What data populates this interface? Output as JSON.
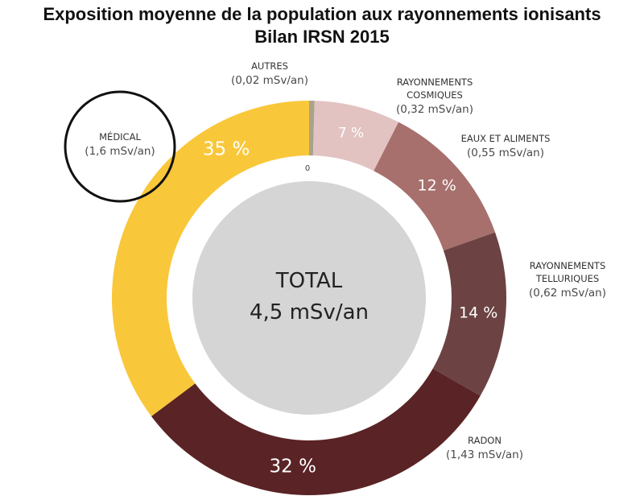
{
  "chart_data": {
    "type": "pie",
    "title": "Exposition moyenne de la population aux rayonnements ionisants",
    "subtitle": "Bilan IRSN 2015",
    "center_label": "TOTAL",
    "center_value": "4,5 mSv/an",
    "zero_tick": "0",
    "unit": "mSv/an",
    "slices": [
      {
        "name": "AUTRES",
        "value_label": "(0,02 mSv/an)",
        "value": 0.02,
        "pct_label": "",
        "color": "#a9a38a"
      },
      {
        "name": "RAYONNEMENTS COSMIQUES",
        "value_label": "(0,32 mSv/an)",
        "value": 0.32,
        "pct_label": "7 %",
        "color": "#e2c3c2"
      },
      {
        "name": "EAUX ET ALIMENTS",
        "value_label": "(0,55 mSv/an)",
        "value": 0.55,
        "pct_label": "12 %",
        "color": "#a7706d"
      },
      {
        "name": "RAYONNEMENTS TELLURIQUES",
        "value_label": "(0,62 mSv/an)",
        "value": 0.62,
        "pct_label": "14 %",
        "color": "#6c4342"
      },
      {
        "name": "RADON",
        "value_label": "(1,43 mSv/an)",
        "value": 1.43,
        "pct_label": "32 %",
        "color": "#5a2325"
      },
      {
        "name": "MÉDICAL",
        "value_label": "(1,6 mSv/an)",
        "value": 1.6,
        "pct_label": "35 %",
        "color": "#f9c73a"
      }
    ],
    "highlighted": "MÉDICAL"
  }
}
